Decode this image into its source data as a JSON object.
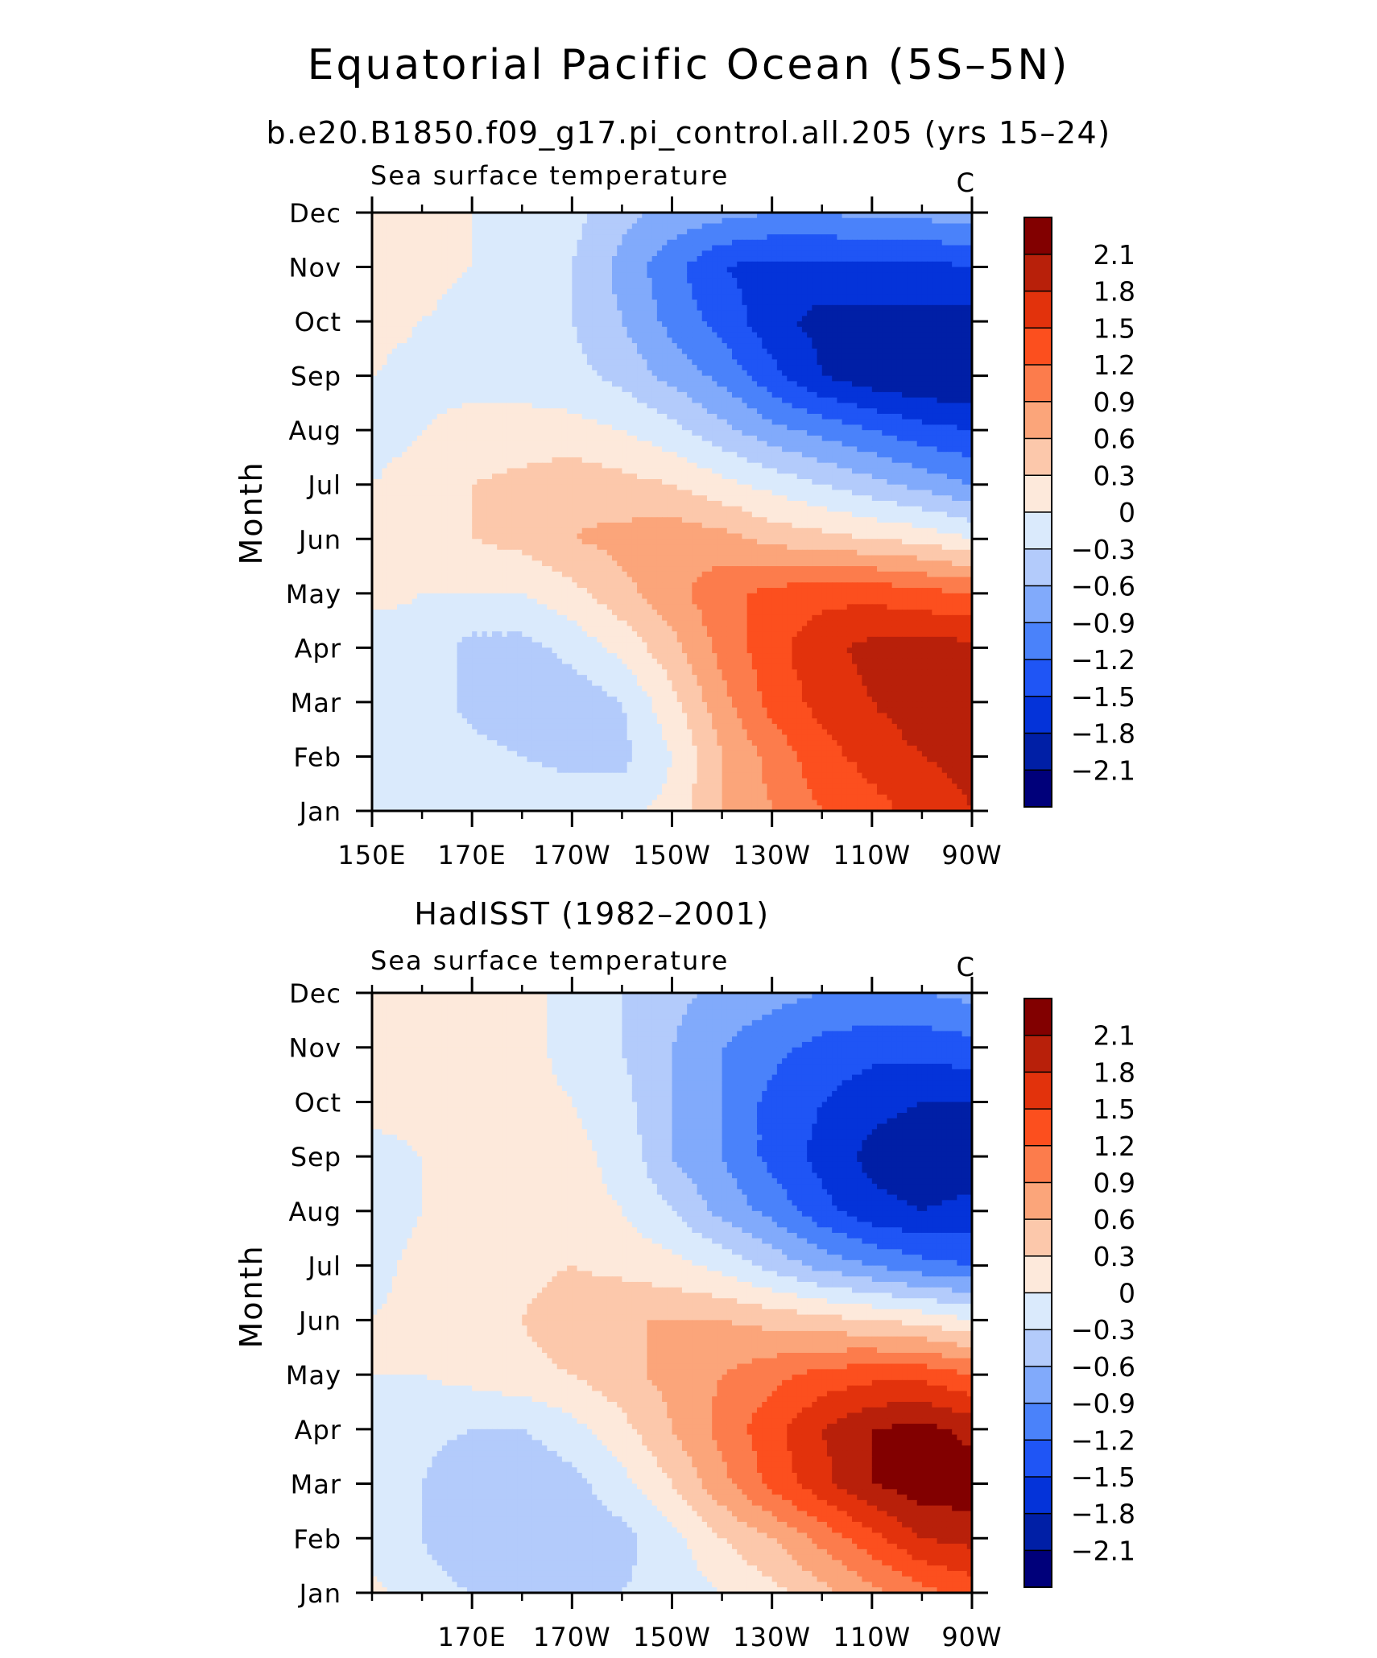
{
  "figure": {
    "title": "Equatorial Pacific Ocean (5S–5N)"
  },
  "colors": {
    "scale": [
      "#00007a",
      "#001fa6",
      "#0433d9",
      "#1f55f5",
      "#4a82fa",
      "#81aafb",
      "#b3cbfb",
      "#daeafc",
      "#fde9db",
      "#fcc8ab",
      "#fba57a",
      "#fc7c4c",
      "#fc4f1e",
      "#e2320c",
      "#b8200a",
      "#820000"
    ],
    "frame": "#000000"
  },
  "chart_data": [
    {
      "type": "heatmap",
      "title": "b.e20.B1850.f09_g17.pi_control.all.205 (yrs 15–24)",
      "left_string": "Sea surface temperature",
      "right_string": "C",
      "ylabel": "Month",
      "xlabel": "",
      "x_tick_values": [
        150,
        170,
        190,
        210,
        230,
        250,
        270
      ],
      "x_tick_labels": [
        "150E",
        "170E",
        "170W",
        "150W",
        "130W",
        "110W",
        "90W"
      ],
      "y_tick_labels": [
        "Jan",
        "Feb",
        "Mar",
        "Apr",
        "May",
        "Jun",
        "Jul",
        "Aug",
        "Sep",
        "Oct",
        "Nov",
        "Dec"
      ],
      "xlim": [
        150,
        270
      ],
      "ylim": [
        1,
        12
      ],
      "levels": [
        -2.1,
        -1.8,
        -1.5,
        -1.2,
        -0.9,
        -0.6,
        -0.3,
        0,
        0.3,
        0.6,
        0.9,
        1.2,
        1.5,
        1.8,
        2.1
      ],
      "colorbar_labels": [
        "2.1",
        "1.8",
        "1.5",
        "1.2",
        "0.9",
        "0.6",
        "0.3",
        "0",
        "−0.3",
        "−0.6",
        "−0.9",
        "−1.2",
        "−1.5",
        "−1.8",
        "−2.1"
      ],
      "x": [
        150,
        160,
        170,
        180,
        190,
        200,
        210,
        220,
        230,
        240,
        250,
        260,
        270
      ],
      "months": [
        1,
        2,
        3,
        4,
        5,
        6,
        7,
        8,
        9,
        10,
        11,
        12
      ],
      "z": [
        [
          0.0,
          -0.1,
          -0.1,
          -0.1,
          -0.1,
          -0.1,
          0.1,
          0.6,
          0.9,
          1.2,
          1.4,
          1.6,
          1.8
        ],
        [
          -0.1,
          -0.1,
          -0.2,
          -0.3,
          -0.4,
          -0.4,
          0.0,
          0.6,
          1.0,
          1.4,
          1.6,
          1.8,
          1.9
        ],
        [
          -0.1,
          -0.1,
          -0.4,
          -0.5,
          -0.5,
          -0.3,
          0.2,
          0.8,
          1.3,
          1.6,
          1.8,
          2.0,
          2.1
        ],
        [
          -0.2,
          -0.1,
          -0.4,
          -0.4,
          -0.2,
          0.1,
          0.5,
          1.0,
          1.4,
          1.7,
          1.9,
          1.9,
          1.9
        ],
        [
          0.1,
          0.0,
          0.0,
          0.0,
          0.2,
          0.5,
          0.8,
          1.1,
          1.3,
          1.4,
          1.4,
          1.3,
          1.2
        ],
        [
          0.1,
          0.2,
          0.3,
          0.4,
          0.6,
          0.7,
          0.8,
          0.7,
          0.5,
          0.4,
          0.3,
          0.2,
          0.0
        ],
        [
          0.0,
          0.1,
          0.3,
          0.4,
          0.5,
          0.4,
          0.3,
          0.1,
          -0.1,
          -0.3,
          -0.5,
          -0.7,
          -0.9
        ],
        [
          -0.1,
          0.0,
          0.1,
          0.1,
          0.1,
          0.0,
          -0.2,
          -0.5,
          -0.8,
          -1.0,
          -1.2,
          -1.4,
          -1.5
        ],
        [
          0.0,
          -0.1,
          -0.1,
          -0.1,
          -0.2,
          -0.4,
          -0.7,
          -1.0,
          -1.4,
          -1.8,
          -2.0,
          -2.1,
          -2.1
        ],
        [
          0.1,
          0.0,
          -0.1,
          -0.1,
          -0.3,
          -0.6,
          -1.0,
          -1.3,
          -1.7,
          -1.9,
          -1.9,
          -1.9,
          -1.9
        ],
        [
          0.2,
          0.1,
          0.0,
          -0.1,
          -0.3,
          -0.7,
          -1.1,
          -1.5,
          -1.6,
          -1.6,
          -1.6,
          -1.6,
          -1.5
        ],
        [
          0.2,
          0.1,
          0.0,
          -0.1,
          -0.2,
          -0.5,
          -0.7,
          -0.8,
          -0.9,
          -0.9,
          -0.8,
          -0.8,
          -0.7
        ]
      ]
    },
    {
      "type": "heatmap",
      "title": "HadISST (1982–2001)",
      "left_string": "Sea surface temperature",
      "right_string": "C",
      "ylabel": "Month",
      "xlabel": "",
      "x_tick_values": [
        170,
        190,
        210,
        230,
        250,
        270
      ],
      "x_tick_labels": [
        "170E",
        "170W",
        "150W",
        "130W",
        "110W",
        "90W"
      ],
      "y_tick_labels": [
        "Jan",
        "Feb",
        "Mar",
        "Apr",
        "May",
        "Jun",
        "Jul",
        "Aug",
        "Sep",
        "Oct",
        "Nov",
        "Dec"
      ],
      "xlim": [
        150,
        270
      ],
      "ylim": [
        1,
        12
      ],
      "levels": [
        -2.1,
        -1.8,
        -1.5,
        -1.2,
        -0.9,
        -0.6,
        -0.3,
        0,
        0.3,
        0.6,
        0.9,
        1.2,
        1.5,
        1.8,
        2.1
      ],
      "colorbar_labels": [
        "2.1",
        "1.8",
        "1.5",
        "1.2",
        "0.9",
        "0.6",
        "0.3",
        "0",
        "−0.3",
        "−0.6",
        "−0.9",
        "−1.2",
        "−1.5",
        "−1.8",
        "−2.1"
      ],
      "x": [
        150,
        160,
        170,
        180,
        190,
        200,
        210,
        220,
        230,
        240,
        250,
        260,
        270
      ],
      "months": [
        1,
        2,
        3,
        4,
        5,
        6,
        7,
        8,
        9,
        10,
        11,
        12
      ],
      "z": [
        [
          0.1,
          -0.2,
          -0.3,
          -0.4,
          -0.4,
          -0.3,
          -0.2,
          0.0,
          0.2,
          0.5,
          0.8,
          1.1,
          1.3
        ],
        [
          -0.2,
          -0.3,
          -0.5,
          -0.5,
          -0.5,
          -0.4,
          -0.1,
          0.3,
          0.6,
          1.0,
          1.4,
          1.8,
          1.9
        ],
        [
          -0.2,
          -0.3,
          -0.6,
          -0.6,
          -0.4,
          -0.1,
          0.3,
          0.8,
          1.3,
          1.7,
          2.1,
          2.3,
          2.3
        ],
        [
          -0.1,
          -0.2,
          -0.3,
          -0.3,
          -0.1,
          0.2,
          0.6,
          1.0,
          1.4,
          1.8,
          2.1,
          2.2,
          2.0
        ],
        [
          0.0,
          0.0,
          0.1,
          0.2,
          0.3,
          0.5,
          0.7,
          0.9,
          1.1,
          1.3,
          1.4,
          1.4,
          1.2
        ],
        [
          0.0,
          0.1,
          0.2,
          0.3,
          0.5,
          0.6,
          0.6,
          0.6,
          0.5,
          0.4,
          0.3,
          0.2,
          0.0
        ],
        [
          -0.1,
          0.1,
          0.1,
          0.2,
          0.3,
          0.2,
          0.1,
          -0.1,
          -0.4,
          -0.7,
          -0.9,
          -1.1,
          -1.2
        ],
        [
          -0.2,
          0.0,
          0.1,
          0.1,
          0.1,
          0.0,
          -0.3,
          -0.7,
          -1.0,
          -1.4,
          -1.7,
          -1.8,
          -1.7
        ],
        [
          -0.1,
          0.0,
          0.1,
          0.3,
          0.1,
          -0.1,
          -0.6,
          -0.9,
          -1.3,
          -1.6,
          -1.9,
          -2.0,
          -2.0
        ],
        [
          0.1,
          0.1,
          0.1,
          0.1,
          0.0,
          -0.2,
          -0.6,
          -0.9,
          -1.3,
          -1.5,
          -1.7,
          -1.8,
          -1.8
        ],
        [
          0.1,
          0.1,
          0.1,
          0.1,
          -0.1,
          -0.3,
          -0.6,
          -0.9,
          -1.1,
          -1.3,
          -1.4,
          -1.4,
          -1.3
        ],
        [
          0.1,
          0.1,
          0.1,
          0.1,
          -0.1,
          -0.3,
          -0.5,
          -0.7,
          -0.8,
          -0.9,
          -0.9,
          -0.9,
          -0.8
        ]
      ]
    }
  ]
}
